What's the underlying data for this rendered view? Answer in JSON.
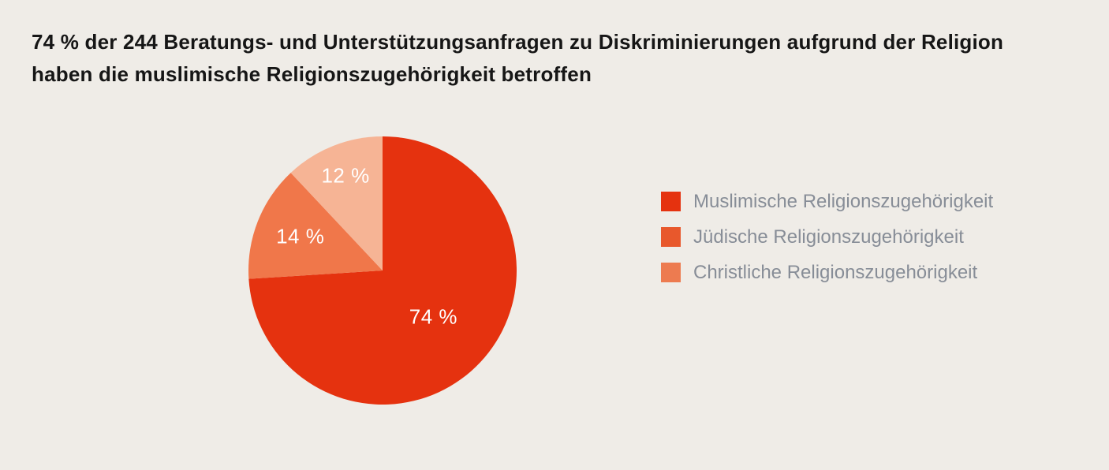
{
  "page": {
    "background_color": "#efece7"
  },
  "title": {
    "text": "74 % der 244 Beratungs- und Unterstützungsanfragen zu Diskriminierungen aufgrund der Religion haben die muslimische Religionszugehörigkeit betroffen",
    "lines": [
      "74 % der 244 Beratungs- und Unterstützungsanfragen zu Diskriminierungen aufgrund der Religion",
      "haben die muslimische Religionszugehörigkeit betroffen"
    ],
    "color": "#161616"
  },
  "chart_data": {
    "type": "pie",
    "title": "74 % der 244 Beratungs- und Unterstützungsanfragen zu Diskriminierungen aufgrund der Religion haben die muslimische Religionszugehörigkeit betroffen",
    "total": 100,
    "total_requests": 244,
    "start_angle_deg": 0,
    "direction": "clockwise",
    "series": [
      {
        "label": "Muslimische Religionszugehörigkeit",
        "value": 74,
        "data_label": "74 %",
        "slice_color": "#e5320f",
        "legend_color": "#e5320f"
      },
      {
        "label": "Jüdische Religionszugehörigkeit",
        "value": 14,
        "data_label": "14 %",
        "slice_color": "#f0774a",
        "legend_color": "#e8582c"
      },
      {
        "label": "Christliche Religionszugehörigkeit",
        "value": 12,
        "data_label": "12 %",
        "slice_color": "#f6b495",
        "legend_color": "#ed7b50"
      }
    ],
    "data_label_color": "#ffffff",
    "legend_position": "right",
    "legend_text_color": "#878d97",
    "label_radius_factors": [
      0.52,
      0.66,
      0.75
    ],
    "grid": false
  }
}
